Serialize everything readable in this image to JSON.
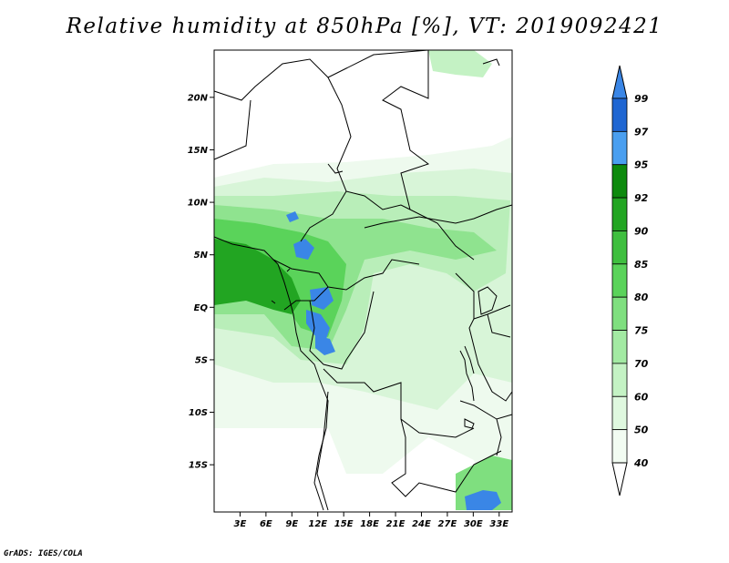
{
  "title": "Relative humidity at 850hPa [%], VT: 2019092421",
  "footer": "GrADS: IGES/COLA",
  "map": {
    "lat_labels": [
      "20N",
      "15N",
      "10N",
      "5N",
      "EQ",
      "5S",
      "10S",
      "15S"
    ],
    "lon_labels": [
      "3E",
      "6E",
      "9E",
      "12E",
      "15E",
      "18E",
      "21E",
      "24E",
      "27E",
      "30E",
      "33E"
    ],
    "lat_values": [
      20,
      15,
      10,
      5,
      0,
      -5,
      -10,
      -15
    ],
    "lon_values": [
      3,
      6,
      9,
      12,
      15,
      18,
      21,
      24,
      27,
      30,
      33
    ],
    "lon_range": [
      0,
      34.5
    ],
    "lat_range": [
      -19.5,
      24.5
    ]
  },
  "colorbar": {
    "labels": [
      "99",
      "97",
      "95",
      "92",
      "90",
      "85",
      "80",
      "75",
      "70",
      "60",
      "50",
      "40"
    ],
    "colors": [
      "#3a86e6",
      "#1f66d2",
      "#4a9ff0",
      "#0d8a0d",
      "#22a522",
      "#3fbf3f",
      "#5ad35a",
      "#7fdf7f",
      "#a3eaa3",
      "#c4f2c4",
      "#dff8df",
      "#f2fcf2",
      "#ffffff"
    ]
  }
}
